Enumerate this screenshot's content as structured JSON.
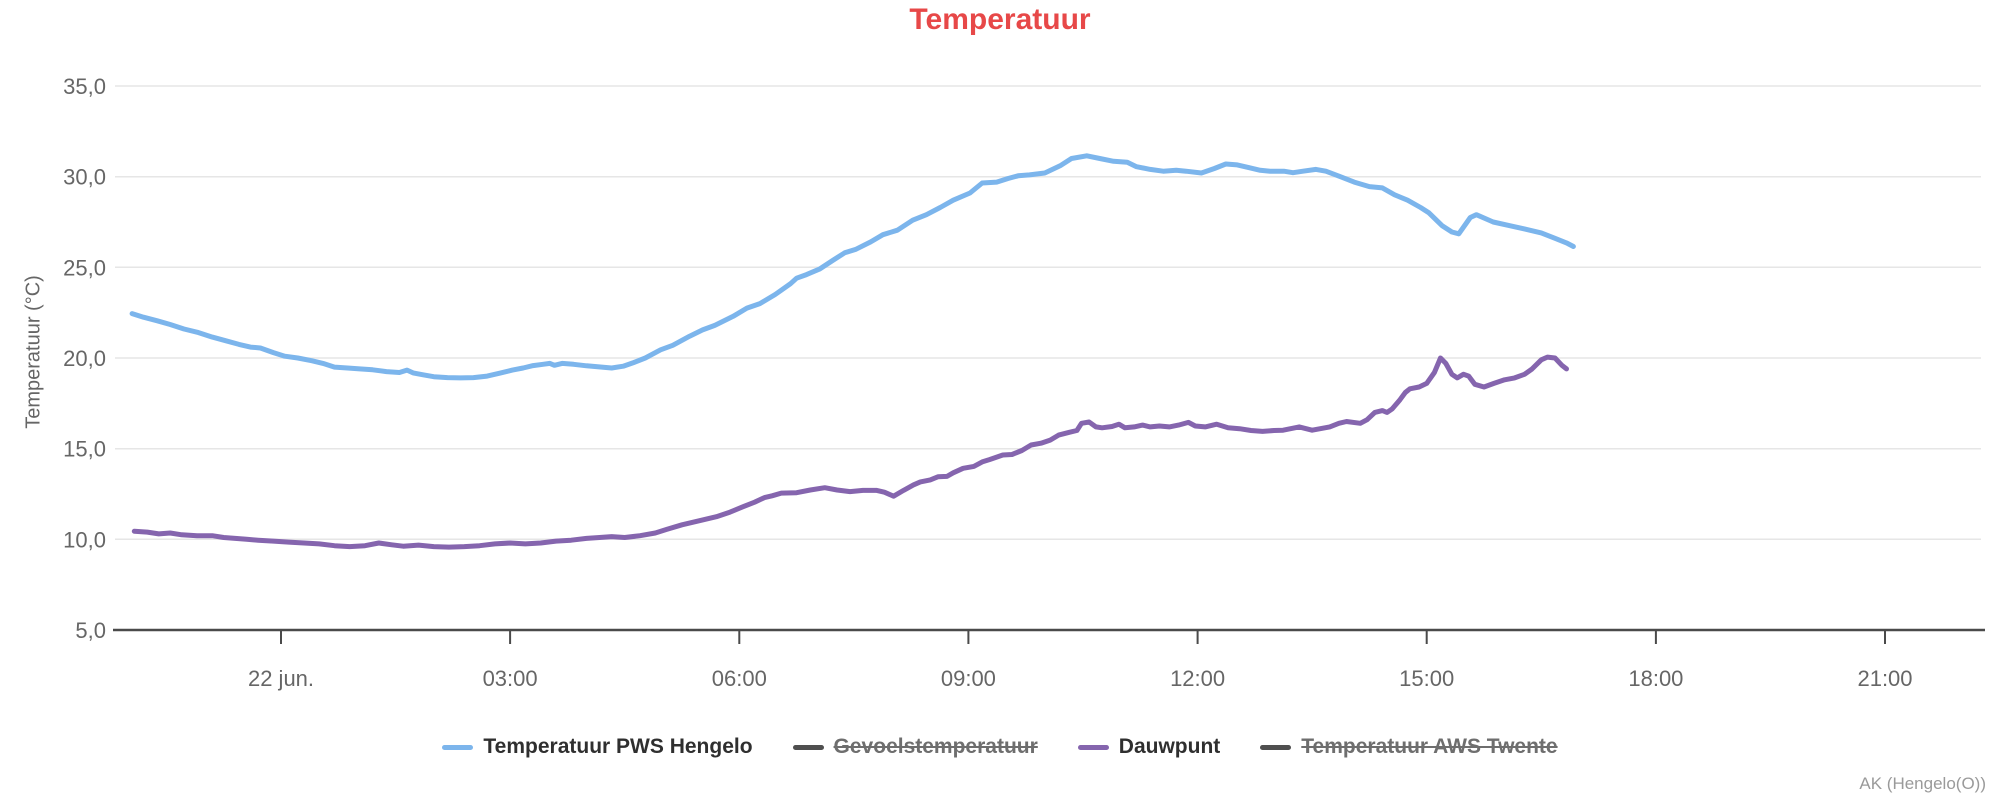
{
  "credit": "AK (Hengelo(O))",
  "colors": {
    "title": "#e74848",
    "axis_text": "#666666",
    "axis_line": "#4a4a4a",
    "grid": "#e6e6e6",
    "series_blue": "#7cb5ec",
    "series_purple": "#8565ae",
    "disabled_marker": "#4f4f4f"
  },
  "chart_data": {
    "type": "line",
    "title": "Temperatuur",
    "xlabel": "",
    "ylabel": "Temperatuur (°C)",
    "ylim": [
      5,
      35
    ],
    "xlim_hours": [
      -2.2,
      22.3
    ],
    "x_unit": "hours relative to 22 jun. 00:00",
    "grid": "horizontal",
    "legend_position": "bottom",
    "y_ticks": {
      "values": [
        35,
        30,
        25,
        20,
        15,
        10,
        5
      ],
      "labels": [
        "35,0",
        "30,0",
        "25,0",
        "20,0",
        "15,0",
        "10,0",
        "5,0"
      ]
    },
    "x_ticks": {
      "hours": [
        0,
        3,
        6,
        9,
        12,
        15,
        18,
        21
      ],
      "labels": [
        "22 jun.",
        "03:00",
        "06:00",
        "09:00",
        "12:00",
        "15:00",
        "18:00",
        "21:00"
      ]
    },
    "legend": [
      {
        "label": "Temperatuur PWS Hengelo",
        "color": "#7cb5ec",
        "enabled": true
      },
      {
        "label": "Gevoelstemperatuur",
        "color": "#4f4f4f",
        "enabled": false
      },
      {
        "label": "Dauwpunt",
        "color": "#8565ae",
        "enabled": true
      },
      {
        "label": "Temperatuur AWS Twente",
        "color": "#4f4f4f",
        "enabled": false
      }
    ],
    "series": [
      {
        "name": "Temperatuur PWS Hengelo",
        "color": "#7cb5ec",
        "visible": true,
        "points": [
          [
            -1.95,
            22.45
          ],
          [
            -1.8,
            22.25
          ],
          [
            -1.62,
            22.05
          ],
          [
            -1.45,
            21.85
          ],
          [
            -1.27,
            21.6
          ],
          [
            -1.08,
            21.4
          ],
          [
            -0.9,
            21.15
          ],
          [
            -0.72,
            20.95
          ],
          [
            -0.55,
            20.75
          ],
          [
            -0.4,
            20.6
          ],
          [
            -0.27,
            20.55
          ],
          [
            -0.1,
            20.3
          ],
          [
            0.05,
            20.1
          ],
          [
            0.22,
            20.0
          ],
          [
            0.4,
            19.85
          ],
          [
            0.55,
            19.7
          ],
          [
            0.7,
            19.5
          ],
          [
            0.87,
            19.45
          ],
          [
            1.03,
            19.4
          ],
          [
            1.2,
            19.35
          ],
          [
            1.38,
            19.25
          ],
          [
            1.55,
            19.2
          ],
          [
            1.65,
            19.33
          ],
          [
            1.73,
            19.18
          ],
          [
            1.87,
            19.07
          ],
          [
            2.0,
            18.97
          ],
          [
            2.18,
            18.92
          ],
          [
            2.35,
            18.9
          ],
          [
            2.52,
            18.92
          ],
          [
            2.7,
            19.0
          ],
          [
            2.87,
            19.17
          ],
          [
            3.03,
            19.33
          ],
          [
            3.17,
            19.45
          ],
          [
            3.3,
            19.58
          ],
          [
            3.43,
            19.65
          ],
          [
            3.52,
            19.7
          ],
          [
            3.58,
            19.6
          ],
          [
            3.68,
            19.7
          ],
          [
            3.83,
            19.65
          ],
          [
            4.0,
            19.57
          ],
          [
            4.2,
            19.5
          ],
          [
            4.33,
            19.45
          ],
          [
            4.48,
            19.55
          ],
          [
            4.62,
            19.75
          ],
          [
            4.77,
            20.0
          ],
          [
            4.97,
            20.45
          ],
          [
            5.13,
            20.7
          ],
          [
            5.35,
            21.2
          ],
          [
            5.52,
            21.55
          ],
          [
            5.68,
            21.8
          ],
          [
            5.92,
            22.3
          ],
          [
            6.1,
            22.75
          ],
          [
            6.27,
            23.0
          ],
          [
            6.47,
            23.5
          ],
          [
            6.67,
            24.1
          ],
          [
            6.75,
            24.4
          ],
          [
            6.88,
            24.6
          ],
          [
            7.05,
            24.9
          ],
          [
            7.23,
            25.4
          ],
          [
            7.38,
            25.8
          ],
          [
            7.53,
            26.0
          ],
          [
            7.72,
            26.4
          ],
          [
            7.88,
            26.8
          ],
          [
            8.07,
            27.05
          ],
          [
            8.27,
            27.6
          ],
          [
            8.45,
            27.9
          ],
          [
            8.63,
            28.3
          ],
          [
            8.8,
            28.7
          ],
          [
            9.02,
            29.1
          ],
          [
            9.18,
            29.65
          ],
          [
            9.37,
            29.7
          ],
          [
            9.52,
            29.9
          ],
          [
            9.65,
            30.05
          ],
          [
            9.8,
            30.1
          ],
          [
            10.0,
            30.2
          ],
          [
            10.2,
            30.6
          ],
          [
            10.35,
            31.0
          ],
          [
            10.55,
            31.15
          ],
          [
            10.72,
            31.0
          ],
          [
            10.9,
            30.85
          ],
          [
            11.08,
            30.8
          ],
          [
            11.2,
            30.55
          ],
          [
            11.38,
            30.4
          ],
          [
            11.55,
            30.3
          ],
          [
            11.72,
            30.35
          ],
          [
            11.85,
            30.3
          ],
          [
            12.05,
            30.2
          ],
          [
            12.22,
            30.45
          ],
          [
            12.37,
            30.7
          ],
          [
            12.52,
            30.65
          ],
          [
            12.67,
            30.5
          ],
          [
            12.82,
            30.35
          ],
          [
            12.95,
            30.3
          ],
          [
            13.13,
            30.3
          ],
          [
            13.25,
            30.22
          ],
          [
            13.38,
            30.3
          ],
          [
            13.55,
            30.4
          ],
          [
            13.68,
            30.3
          ],
          [
            13.87,
            30.0
          ],
          [
            14.05,
            29.7
          ],
          [
            14.25,
            29.45
          ],
          [
            14.42,
            29.38
          ],
          [
            14.58,
            29.0
          ],
          [
            14.75,
            28.7
          ],
          [
            14.92,
            28.3
          ],
          [
            15.03,
            28.0
          ],
          [
            15.2,
            27.3
          ],
          [
            15.33,
            26.95
          ],
          [
            15.42,
            26.85
          ],
          [
            15.57,
            27.75
          ],
          [
            15.65,
            27.9
          ],
          [
            15.87,
            27.5
          ],
          [
            16.08,
            27.3
          ],
          [
            16.3,
            27.1
          ],
          [
            16.5,
            26.9
          ],
          [
            16.68,
            26.6
          ],
          [
            16.83,
            26.35
          ],
          [
            16.92,
            26.15
          ]
        ]
      },
      {
        "name": "Gevoelstemperatuur",
        "color": "#4f4f4f",
        "visible": false,
        "points": []
      },
      {
        "name": "Dauwpunt",
        "color": "#8565ae",
        "visible": true,
        "points": [
          [
            -1.92,
            10.45
          ],
          [
            -1.75,
            10.4
          ],
          [
            -1.6,
            10.3
          ],
          [
            -1.45,
            10.35
          ],
          [
            -1.3,
            10.25
          ],
          [
            -1.1,
            10.2
          ],
          [
            -0.9,
            10.2
          ],
          [
            -0.75,
            10.1
          ],
          [
            -0.6,
            10.05
          ],
          [
            -0.45,
            10.0
          ],
          [
            -0.3,
            9.95
          ],
          [
            -0.1,
            9.9
          ],
          [
            0.1,
            9.85
          ],
          [
            0.3,
            9.8
          ],
          [
            0.5,
            9.75
          ],
          [
            0.7,
            9.65
          ],
          [
            0.9,
            9.6
          ],
          [
            1.1,
            9.65
          ],
          [
            1.28,
            9.8
          ],
          [
            1.45,
            9.7
          ],
          [
            1.6,
            9.62
          ],
          [
            1.8,
            9.68
          ],
          [
            2.0,
            9.6
          ],
          [
            2.2,
            9.57
          ],
          [
            2.4,
            9.6
          ],
          [
            2.6,
            9.65
          ],
          [
            2.8,
            9.75
          ],
          [
            3.0,
            9.8
          ],
          [
            3.2,
            9.75
          ],
          [
            3.4,
            9.8
          ],
          [
            3.6,
            9.9
          ],
          [
            3.8,
            9.95
          ],
          [
            4.0,
            10.05
          ],
          [
            4.17,
            10.1
          ],
          [
            4.33,
            10.15
          ],
          [
            4.5,
            10.1
          ],
          [
            4.7,
            10.2
          ],
          [
            4.9,
            10.35
          ],
          [
            5.05,
            10.55
          ],
          [
            5.25,
            10.8
          ],
          [
            5.5,
            11.05
          ],
          [
            5.7,
            11.25
          ],
          [
            5.88,
            11.5
          ],
          [
            6.05,
            11.8
          ],
          [
            6.2,
            12.05
          ],
          [
            6.33,
            12.3
          ],
          [
            6.43,
            12.4
          ],
          [
            6.55,
            12.55
          ],
          [
            6.75,
            12.57
          ],
          [
            6.93,
            12.72
          ],
          [
            7.12,
            12.85
          ],
          [
            7.28,
            12.72
          ],
          [
            7.45,
            12.63
          ],
          [
            7.62,
            12.7
          ],
          [
            7.8,
            12.7
          ],
          [
            7.9,
            12.6
          ],
          [
            8.02,
            12.38
          ],
          [
            8.15,
            12.7
          ],
          [
            8.28,
            13.0
          ],
          [
            8.37,
            13.17
          ],
          [
            8.5,
            13.28
          ],
          [
            8.6,
            13.45
          ],
          [
            8.72,
            13.47
          ],
          [
            8.8,
            13.67
          ],
          [
            8.93,
            13.92
          ],
          [
            9.07,
            14.02
          ],
          [
            9.18,
            14.27
          ],
          [
            9.28,
            14.4
          ],
          [
            9.45,
            14.65
          ],
          [
            9.57,
            14.68
          ],
          [
            9.7,
            14.9
          ],
          [
            9.82,
            15.2
          ],
          [
            9.95,
            15.3
          ],
          [
            10.07,
            15.47
          ],
          [
            10.18,
            15.75
          ],
          [
            10.32,
            15.9
          ],
          [
            10.42,
            16.0
          ],
          [
            10.48,
            16.4
          ],
          [
            10.58,
            16.47
          ],
          [
            10.67,
            16.2
          ],
          [
            10.75,
            16.15
          ],
          [
            10.88,
            16.22
          ],
          [
            10.97,
            16.35
          ],
          [
            11.05,
            16.15
          ],
          [
            11.17,
            16.2
          ],
          [
            11.28,
            16.3
          ],
          [
            11.38,
            16.2
          ],
          [
            11.5,
            16.25
          ],
          [
            11.63,
            16.2
          ],
          [
            11.75,
            16.3
          ],
          [
            11.88,
            16.45
          ],
          [
            11.97,
            16.25
          ],
          [
            12.1,
            16.2
          ],
          [
            12.25,
            16.35
          ],
          [
            12.4,
            16.15
          ],
          [
            12.55,
            16.1
          ],
          [
            12.7,
            16.0
          ],
          [
            12.85,
            15.95
          ],
          [
            13.0,
            16.0
          ],
          [
            13.12,
            16.02
          ],
          [
            13.33,
            16.2
          ],
          [
            13.5,
            16.02
          ],
          [
            13.73,
            16.2
          ],
          [
            13.85,
            16.4
          ],
          [
            13.95,
            16.5
          ],
          [
            14.13,
            16.4
          ],
          [
            14.22,
            16.6
          ],
          [
            14.32,
            17.0
          ],
          [
            14.42,
            17.1
          ],
          [
            14.48,
            17.0
          ],
          [
            14.55,
            17.2
          ],
          [
            14.65,
            17.7
          ],
          [
            14.72,
            18.1
          ],
          [
            14.78,
            18.3
          ],
          [
            14.9,
            18.4
          ],
          [
            15.0,
            18.6
          ],
          [
            15.1,
            19.2
          ],
          [
            15.18,
            20.0
          ],
          [
            15.25,
            19.7
          ],
          [
            15.33,
            19.1
          ],
          [
            15.4,
            18.9
          ],
          [
            15.48,
            19.1
          ],
          [
            15.55,
            19.0
          ],
          [
            15.63,
            18.55
          ],
          [
            15.75,
            18.4
          ],
          [
            15.88,
            18.6
          ],
          [
            16.02,
            18.8
          ],
          [
            16.15,
            18.9
          ],
          [
            16.28,
            19.1
          ],
          [
            16.38,
            19.4
          ],
          [
            16.5,
            19.9
          ],
          [
            16.58,
            20.05
          ],
          [
            16.68,
            20.0
          ],
          [
            16.77,
            19.6
          ],
          [
            16.83,
            19.4
          ]
        ]
      },
      {
        "name": "Temperatuur AWS Twente",
        "color": "#4f4f4f",
        "visible": false,
        "points": []
      }
    ]
  }
}
